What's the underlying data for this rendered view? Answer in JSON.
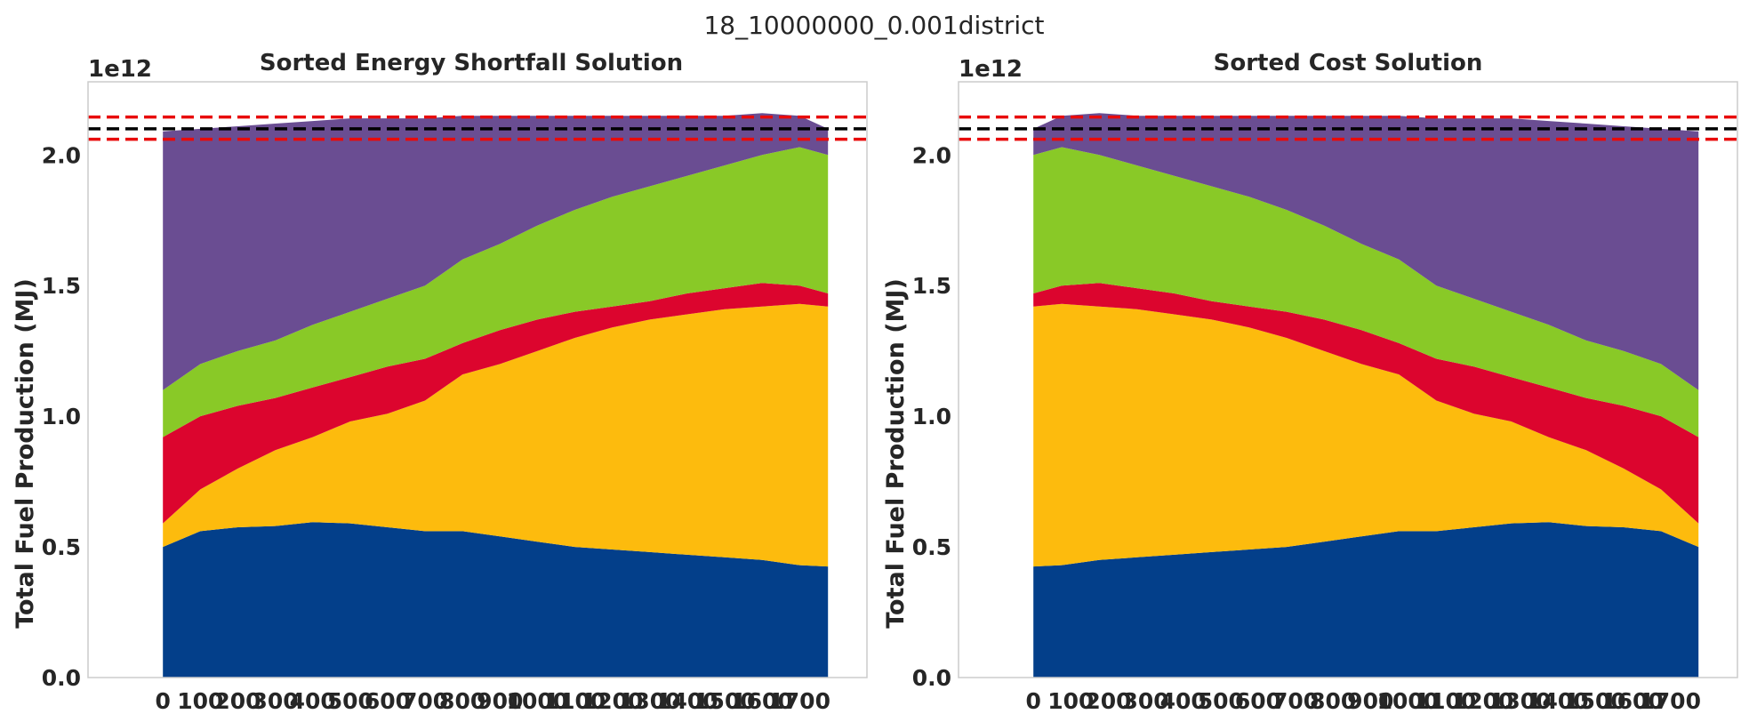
{
  "figure": {
    "title": "18_10000000_0.001district"
  },
  "colors": {
    "blue": "#033f8a",
    "yellow": "#fdbb0d",
    "red": "#dc052e",
    "green": "#89c927",
    "purple": "#6a4d92",
    "reference_line": "#000000",
    "bound_lines": "#e80b0b"
  },
  "chart_data": [
    {
      "type": "area",
      "stacked": true,
      "title": "Sorted Energy Shortfall Solution",
      "xlabel": "",
      "ylabel": "Total Fuel Production (MJ)",
      "y_offset_label": "1e12",
      "xlim": [
        -200,
        1880
      ],
      "ylim": [
        0,
        2.28
      ],
      "xticks": [
        0,
        100,
        200,
        300,
        400,
        500,
        600,
        700,
        800,
        900,
        1000,
        1100,
        1200,
        1300,
        1400,
        1500,
        1600,
        1700
      ],
      "xtick_labels": [
        "0",
        "100",
        "200",
        "300",
        "400",
        "500",
        "600",
        "700",
        "800",
        "900",
        "1000",
        "1100",
        "1200",
        "1300",
        "1400",
        "1500",
        "1600",
        "1700"
      ],
      "yticks": [
        0.0,
        0.5,
        1.0,
        1.5,
        2.0
      ],
      "ytick_labels": [
        "0.0",
        "0.5",
        "1.0",
        "1.5",
        "2.0"
      ],
      "grid": false,
      "x": [
        0,
        100,
        200,
        300,
        400,
        500,
        600,
        700,
        800,
        900,
        1000,
        1100,
        1200,
        1300,
        1400,
        1500,
        1600,
        1700,
        1776
      ],
      "series": [
        {
          "color_key": "blue",
          "cumulative": [
            0.5,
            0.56,
            0.575,
            0.58,
            0.595,
            0.59,
            0.575,
            0.56,
            0.56,
            0.54,
            0.52,
            0.5,
            0.49,
            0.48,
            0.47,
            0.46,
            0.45,
            0.43,
            0.425
          ]
        },
        {
          "color_key": "yellow",
          "cumulative": [
            0.59,
            0.72,
            0.8,
            0.87,
            0.92,
            0.98,
            1.01,
            1.06,
            1.16,
            1.2,
            1.25,
            1.3,
            1.34,
            1.37,
            1.39,
            1.41,
            1.42,
            1.43,
            1.42
          ]
        },
        {
          "color_key": "red",
          "cumulative": [
            0.92,
            1.0,
            1.04,
            1.07,
            1.11,
            1.15,
            1.19,
            1.22,
            1.28,
            1.33,
            1.37,
            1.4,
            1.42,
            1.44,
            1.47,
            1.49,
            1.51,
            1.5,
            1.47
          ]
        },
        {
          "color_key": "green",
          "cumulative": [
            1.1,
            1.2,
            1.25,
            1.29,
            1.35,
            1.4,
            1.45,
            1.5,
            1.6,
            1.66,
            1.73,
            1.79,
            1.84,
            1.88,
            1.92,
            1.96,
            2.0,
            2.03,
            2.0
          ]
        },
        {
          "color_key": "purple",
          "cumulative": [
            2.09,
            2.1,
            2.11,
            2.12,
            2.13,
            2.14,
            2.14,
            2.14,
            2.15,
            2.15,
            2.15,
            2.15,
            2.15,
            2.15,
            2.15,
            2.15,
            2.16,
            2.15,
            2.1
          ]
        }
      ],
      "hlines": [
        {
          "y": 2.145,
          "color_key": "bound_lines",
          "style": "dashed"
        },
        {
          "y": 2.1,
          "color_key": "reference_line",
          "style": "dashed"
        },
        {
          "y": 2.06,
          "color_key": "bound_lines",
          "style": "dashed"
        }
      ]
    },
    {
      "type": "area",
      "stacked": true,
      "title": "Sorted Cost Solution",
      "xlabel": "",
      "ylabel": "Total Fuel Production (MJ)",
      "y_offset_label": "1e12",
      "xlim": [
        -200,
        1880
      ],
      "ylim": [
        0,
        2.28
      ],
      "xticks": [
        0,
        100,
        200,
        300,
        400,
        500,
        600,
        700,
        800,
        900,
        1000,
        1100,
        1200,
        1300,
        1400,
        1500,
        1600,
        1700
      ],
      "xtick_labels": [
        "0",
        "100",
        "200",
        "300",
        "400",
        "500",
        "600",
        "700",
        "800",
        "900",
        "1000",
        "1100",
        "1200",
        "1300",
        "1400",
        "1500",
        "1600",
        "1700"
      ],
      "yticks": [
        0.0,
        0.5,
        1.0,
        1.5,
        2.0
      ],
      "ytick_labels": [
        "0.0",
        "0.5",
        "1.0",
        "1.5",
        "2.0"
      ],
      "grid": false,
      "x": [
        0,
        76,
        176,
        276,
        376,
        476,
        576,
        676,
        776,
        876,
        976,
        1076,
        1176,
        1276,
        1376,
        1476,
        1576,
        1676,
        1776
      ],
      "series": [
        {
          "color_key": "blue",
          "cumulative": [
            0.425,
            0.43,
            0.45,
            0.46,
            0.47,
            0.48,
            0.49,
            0.5,
            0.52,
            0.54,
            0.56,
            0.56,
            0.575,
            0.59,
            0.595,
            0.58,
            0.575,
            0.56,
            0.5
          ]
        },
        {
          "color_key": "yellow",
          "cumulative": [
            1.42,
            1.43,
            1.42,
            1.41,
            1.39,
            1.37,
            1.34,
            1.3,
            1.25,
            1.2,
            1.16,
            1.06,
            1.01,
            0.98,
            0.92,
            0.87,
            0.8,
            0.72,
            0.59
          ]
        },
        {
          "color_key": "red",
          "cumulative": [
            1.47,
            1.5,
            1.51,
            1.49,
            1.47,
            1.44,
            1.42,
            1.4,
            1.37,
            1.33,
            1.28,
            1.22,
            1.19,
            1.15,
            1.11,
            1.07,
            1.04,
            1.0,
            0.92
          ]
        },
        {
          "color_key": "green",
          "cumulative": [
            2.0,
            2.03,
            2.0,
            1.96,
            1.92,
            1.88,
            1.84,
            1.79,
            1.73,
            1.66,
            1.6,
            1.5,
            1.45,
            1.4,
            1.35,
            1.29,
            1.25,
            1.2,
            1.1
          ]
        },
        {
          "color_key": "purple",
          "cumulative": [
            2.1,
            2.15,
            2.16,
            2.15,
            2.15,
            2.15,
            2.15,
            2.15,
            2.15,
            2.15,
            2.15,
            2.14,
            2.14,
            2.14,
            2.13,
            2.12,
            2.11,
            2.1,
            2.09
          ]
        }
      ],
      "hlines": [
        {
          "y": 2.145,
          "color_key": "bound_lines",
          "style": "dashed"
        },
        {
          "y": 2.1,
          "color_key": "reference_line",
          "style": "dashed"
        },
        {
          "y": 2.06,
          "color_key": "bound_lines",
          "style": "dashed"
        }
      ]
    }
  ]
}
